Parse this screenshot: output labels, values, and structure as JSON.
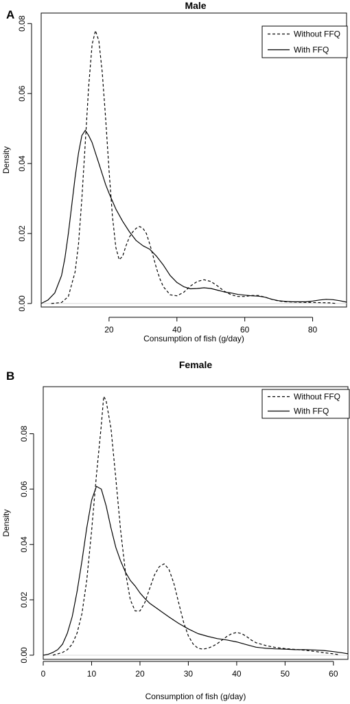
{
  "panels": [
    {
      "letter": "A",
      "title": "Male"
    },
    {
      "letter": "B",
      "title": "Female"
    }
  ],
  "chart_data": [
    {
      "type": "line",
      "title": "Male",
      "xlabel": "Consumption of fish (g/day)",
      "ylabel": "Density",
      "xlim": [
        0,
        90
      ],
      "ylim": [
        -0.001,
        0.083
      ],
      "xticks": [
        20,
        40,
        60,
        80
      ],
      "yticks": [
        0.0,
        0.02,
        0.04,
        0.06,
        0.08
      ],
      "ytick_labels": [
        "0.00",
        "0.02",
        "0.04",
        "0.06",
        "0.08"
      ],
      "grid": false,
      "legend": "top-right",
      "series": [
        {
          "name": "Without FFQ",
          "style": "dashed",
          "x": [
            3,
            6,
            8,
            10,
            11,
            12,
            13,
            14,
            15,
            16,
            17,
            18,
            19,
            20,
            21,
            22,
            23,
            24,
            25,
            26,
            27,
            28,
            29,
            30,
            31,
            32,
            33,
            34,
            35,
            36,
            38,
            40,
            42,
            44,
            46,
            48,
            50,
            52,
            54,
            56,
            58,
            60,
            62,
            64,
            66,
            68,
            70,
            72,
            75,
            80,
            85,
            87
          ],
          "y": [
            0,
            0.0003,
            0.002,
            0.009,
            0.017,
            0.03,
            0.046,
            0.062,
            0.074,
            0.078,
            0.075,
            0.066,
            0.053,
            0.038,
            0.025,
            0.016,
            0.0125,
            0.0135,
            0.0165,
            0.019,
            0.0205,
            0.0215,
            0.022,
            0.0215,
            0.02,
            0.017,
            0.0135,
            0.01,
            0.007,
            0.0048,
            0.0025,
            0.0022,
            0.0032,
            0.005,
            0.0063,
            0.0068,
            0.0063,
            0.005,
            0.0035,
            0.0025,
            0.002,
            0.002,
            0.0023,
            0.0023,
            0.0018,
            0.0012,
            0.0007,
            0.0005,
            0.0004,
            0.0003,
            0.0002,
            0
          ]
        },
        {
          "name": "With FFQ",
          "style": "solid",
          "x": [
            0,
            2,
            4,
            6,
            7,
            8,
            9,
            10,
            11,
            12,
            13,
            14,
            15,
            16,
            17,
            18,
            19,
            20,
            22,
            24,
            26,
            28,
            30,
            32,
            34,
            36,
            38,
            40,
            42,
            44,
            46,
            48,
            50,
            52,
            54,
            56,
            58,
            60,
            62,
            64,
            66,
            68,
            70,
            72,
            74,
            76,
            78,
            80,
            82,
            84,
            86,
            88,
            90
          ],
          "y": [
            0,
            0.001,
            0.003,
            0.008,
            0.013,
            0.02,
            0.028,
            0.036,
            0.043,
            0.048,
            0.0495,
            0.048,
            0.046,
            0.043,
            0.04,
            0.037,
            0.034,
            0.0315,
            0.027,
            0.0235,
            0.0205,
            0.018,
            0.0165,
            0.0155,
            0.0135,
            0.011,
            0.008,
            0.006,
            0.0048,
            0.0042,
            0.0043,
            0.0045,
            0.0043,
            0.0038,
            0.0033,
            0.003,
            0.0026,
            0.0024,
            0.0022,
            0.0021,
            0.0018,
            0.0012,
            0.0008,
            0.0006,
            0.0005,
            0.0005,
            0.0005,
            0.0007,
            0.001,
            0.0012,
            0.0011,
            0.0008,
            0.0004
          ]
        }
      ]
    },
    {
      "type": "line",
      "title": "Female",
      "xlabel": "Consumption of fish (g/day)",
      "ylabel": "Density",
      "xlim": [
        0,
        63
      ],
      "ylim": [
        -0.0015,
        0.097
      ],
      "xticks": [
        0,
        10,
        20,
        30,
        40,
        50,
        60
      ],
      "yticks": [
        0.0,
        0.02,
        0.04,
        0.06,
        0.08
      ],
      "ytick_labels": [
        "0.00",
        "0.02",
        "0.04",
        "0.06",
        "0.08"
      ],
      "grid": false,
      "legend": "top-right",
      "series": [
        {
          "name": "Without FFQ",
          "style": "dashed",
          "x": [
            2,
            4,
            5,
            6,
            7,
            8,
            9,
            10,
            11,
            12,
            12.5,
            13,
            14,
            15,
            16,
            17,
            18,
            19,
            20,
            21,
            22,
            23,
            24,
            25,
            26,
            27,
            28,
            29,
            30,
            31,
            32,
            33,
            34,
            35,
            36,
            37,
            38,
            39,
            40,
            41,
            42,
            43,
            44,
            46,
            48,
            50,
            52,
            54,
            56,
            58,
            60,
            61
          ],
          "y": [
            0,
            0.001,
            0.002,
            0.004,
            0.008,
            0.015,
            0.027,
            0.045,
            0.065,
            0.083,
            0.0935,
            0.092,
            0.082,
            0.064,
            0.045,
            0.03,
            0.02,
            0.016,
            0.016,
            0.019,
            0.024,
            0.029,
            0.032,
            0.033,
            0.031,
            0.026,
            0.019,
            0.012,
            0.007,
            0.004,
            0.0025,
            0.0022,
            0.0025,
            0.0032,
            0.0042,
            0.0055,
            0.0068,
            0.0078,
            0.0082,
            0.0078,
            0.0068,
            0.0055,
            0.0045,
            0.0035,
            0.0028,
            0.0024,
            0.0021,
            0.0018,
            0.0014,
            0.0009,
            0.0005,
            0.0002
          ]
        },
        {
          "name": "With FFQ",
          "style": "solid",
          "x": [
            0,
            1,
            2,
            3,
            4,
            5,
            6,
            7,
            8,
            9,
            10,
            11,
            12,
            13,
            14,
            15,
            16,
            17,
            18,
            19,
            20,
            21,
            22,
            24,
            26,
            28,
            30,
            32,
            34,
            36,
            38,
            40,
            42,
            44,
            46,
            48,
            50,
            52,
            54,
            56,
            58,
            60,
            62,
            63
          ],
          "y": [
            0,
            0.0003,
            0.001,
            0.002,
            0.004,
            0.008,
            0.014,
            0.023,
            0.034,
            0.046,
            0.056,
            0.061,
            0.06,
            0.054,
            0.046,
            0.039,
            0.034,
            0.03,
            0.027,
            0.025,
            0.0225,
            0.0205,
            0.0188,
            0.0163,
            0.0138,
            0.0115,
            0.0095,
            0.0078,
            0.0068,
            0.006,
            0.0055,
            0.0048,
            0.0038,
            0.0029,
            0.0025,
            0.0023,
            0.0022,
            0.002,
            0.002,
            0.0019,
            0.0017,
            0.0013,
            0.0008,
            0.0005
          ]
        }
      ]
    }
  ]
}
